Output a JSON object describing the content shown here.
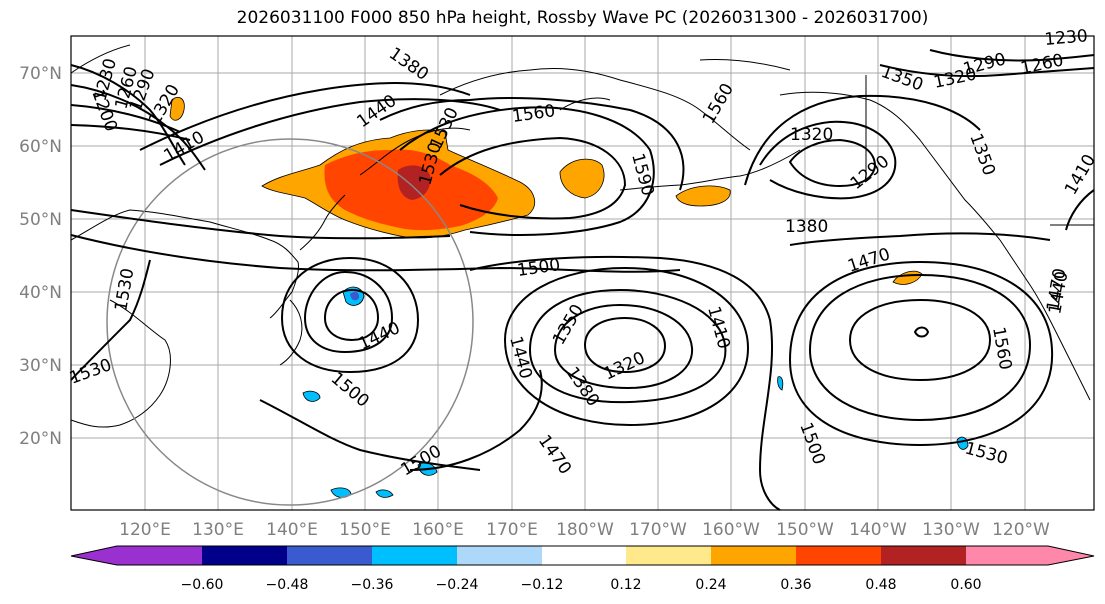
{
  "title": "2026031100 F000 850 hPa height, Rossby Wave PC (2026031300 - 2026031700)",
  "map": {
    "lat_labels": [
      "70°N",
      "60°N",
      "50°N",
      "40°N",
      "30°N",
      "20°N"
    ],
    "lon_labels": [
      "120°E",
      "130°E",
      "140°E",
      "150°E",
      "160°E",
      "170°E",
      "180°W",
      "170°W",
      "160°W",
      "150°W",
      "140°W",
      "130°W",
      "120°W"
    ],
    "contour_labels": [
      "1200",
      "1230",
      "1260",
      "1290",
      "1320",
      "1380",
      "1410",
      "1440",
      "1530",
      "1560",
      "1590",
      "1560",
      "1350",
      "1320",
      "1290",
      "1260",
      "1230",
      "1320",
      "1290",
      "1350",
      "1380",
      "1470",
      "1410",
      "1500",
      "1530",
      "1440",
      "1440",
      "1350",
      "1320",
      "1410",
      "1380",
      "1440",
      "1500",
      "1500",
      "1470",
      "1500",
      "1530",
      "1560",
      "1470",
      "1530",
      "1530"
    ],
    "colors": {
      "axis_label": "#7f7f7f",
      "contour": "#000000",
      "circle": "#888888"
    }
  },
  "colorbar": {
    "ticks": [
      "−0.60",
      "−0.48",
      "−0.36",
      "−0.24",
      "−0.12",
      "0.12",
      "0.24",
      "0.36",
      "0.48",
      "0.60"
    ],
    "colors": [
      "#9b30d0",
      "#00008b",
      "#3a5bd0",
      "#00bfff",
      "#add8fa",
      "#ffffff",
      "#ffe98a",
      "#ffa500",
      "#ff4500",
      "#b22222",
      "#ff88aa"
    ]
  }
}
